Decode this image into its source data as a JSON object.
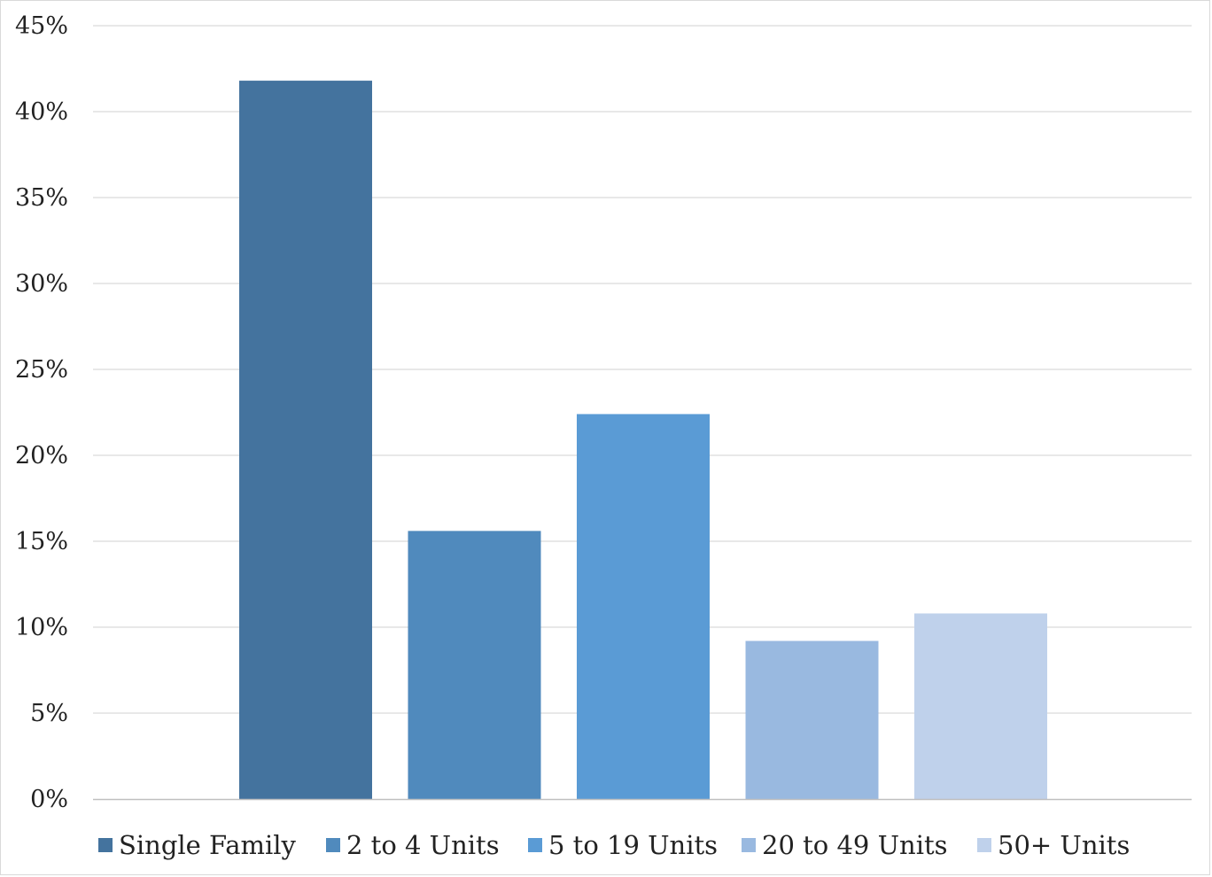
{
  "chart_data": {
    "type": "bar",
    "title": "",
    "xlabel": "",
    "ylabel": "",
    "ylim": [
      0,
      45
    ],
    "yticks": [
      0,
      5,
      10,
      15,
      20,
      25,
      30,
      35,
      40,
      45
    ],
    "ytick_suffix": "%",
    "grid": true,
    "legend_position": "bottom",
    "categories": [
      "Single Family",
      "2 to 4 Units",
      "5 to 19 Units",
      "20 to 49 Units",
      "50+ Units"
    ],
    "series": [
      {
        "name": "Single Family",
        "values": [
          41.8,
          null,
          null,
          null,
          null
        ],
        "color": "#44739e"
      },
      {
        "name": "2 to 4 Units",
        "values": [
          null,
          15.6,
          null,
          null,
          null
        ],
        "color": "#508abd"
      },
      {
        "name": "5 to 19 Units",
        "values": [
          null,
          null,
          22.4,
          null,
          null
        ],
        "color": "#5a9bd5"
      },
      {
        "name": "20 to 49 Units",
        "values": [
          null,
          null,
          null,
          9.2,
          null
        ],
        "color": "#99b9e0"
      },
      {
        "name": "50+ Units",
        "values": [
          null,
          null,
          null,
          null,
          10.8
        ],
        "color": "#bfd1eb"
      }
    ]
  }
}
